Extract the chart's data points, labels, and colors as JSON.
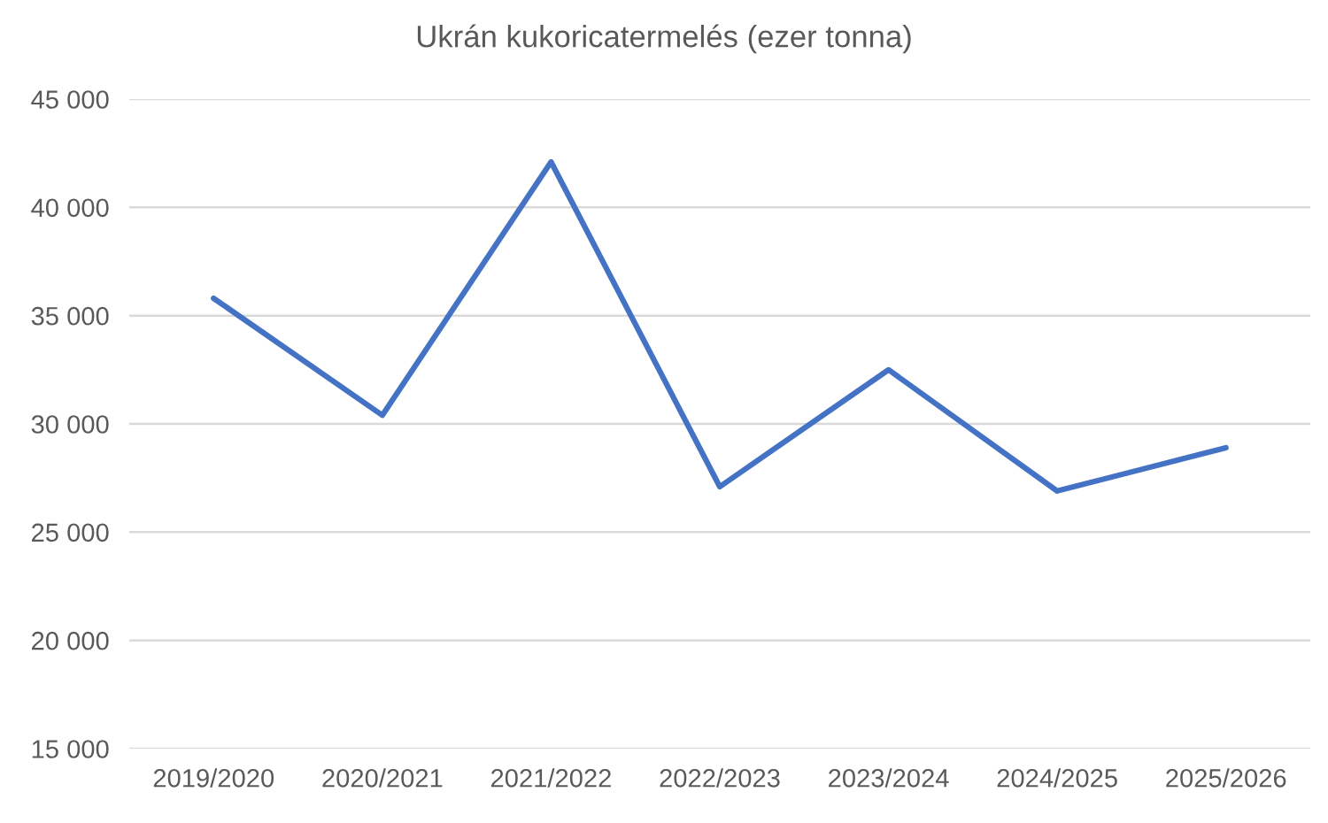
{
  "chart_data": {
    "type": "line",
    "title": "Ukrán kukoricatermelés (ezer tonna)",
    "categories": [
      "2019/2020",
      "2020/2021",
      "2021/2022",
      "2022/2023",
      "2023/2024",
      "2024/2025",
      "2025/2026"
    ],
    "series": [
      {
        "color": "#4472c4",
        "values": [
          35800,
          30400,
          42100,
          27100,
          32500,
          26900,
          28900
        ]
      }
    ],
    "ylim": [
      15000,
      45000
    ],
    "yticks": [
      {
        "value": 15000,
        "label": "15 000"
      },
      {
        "value": 20000,
        "label": "20 000"
      },
      {
        "value": 25000,
        "label": "25 000"
      },
      {
        "value": 30000,
        "label": "30 000"
      },
      {
        "value": 35000,
        "label": "35 000"
      },
      {
        "value": 40000,
        "label": "40 000"
      },
      {
        "value": 45000,
        "label": "45 000"
      }
    ],
    "grid": "y",
    "marker": "none",
    "line_style": "solid"
  }
}
